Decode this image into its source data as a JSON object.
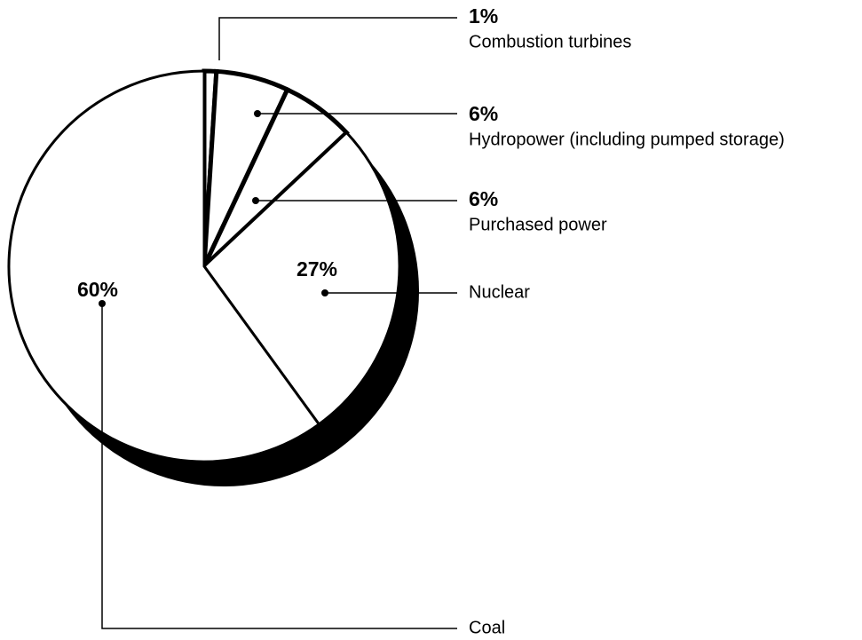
{
  "chart_data": {
    "type": "pie",
    "categories": [
      "Combustion turbines",
      "Hydropower (including pumped storage)",
      "Purchased power",
      "Nuclear",
      "Coal"
    ],
    "values": [
      1,
      6,
      6,
      27,
      60
    ],
    "value_labels": [
      "1%",
      "6%",
      "6%",
      "27%",
      "60%"
    ],
    "color": "#ffffff"
  }
}
